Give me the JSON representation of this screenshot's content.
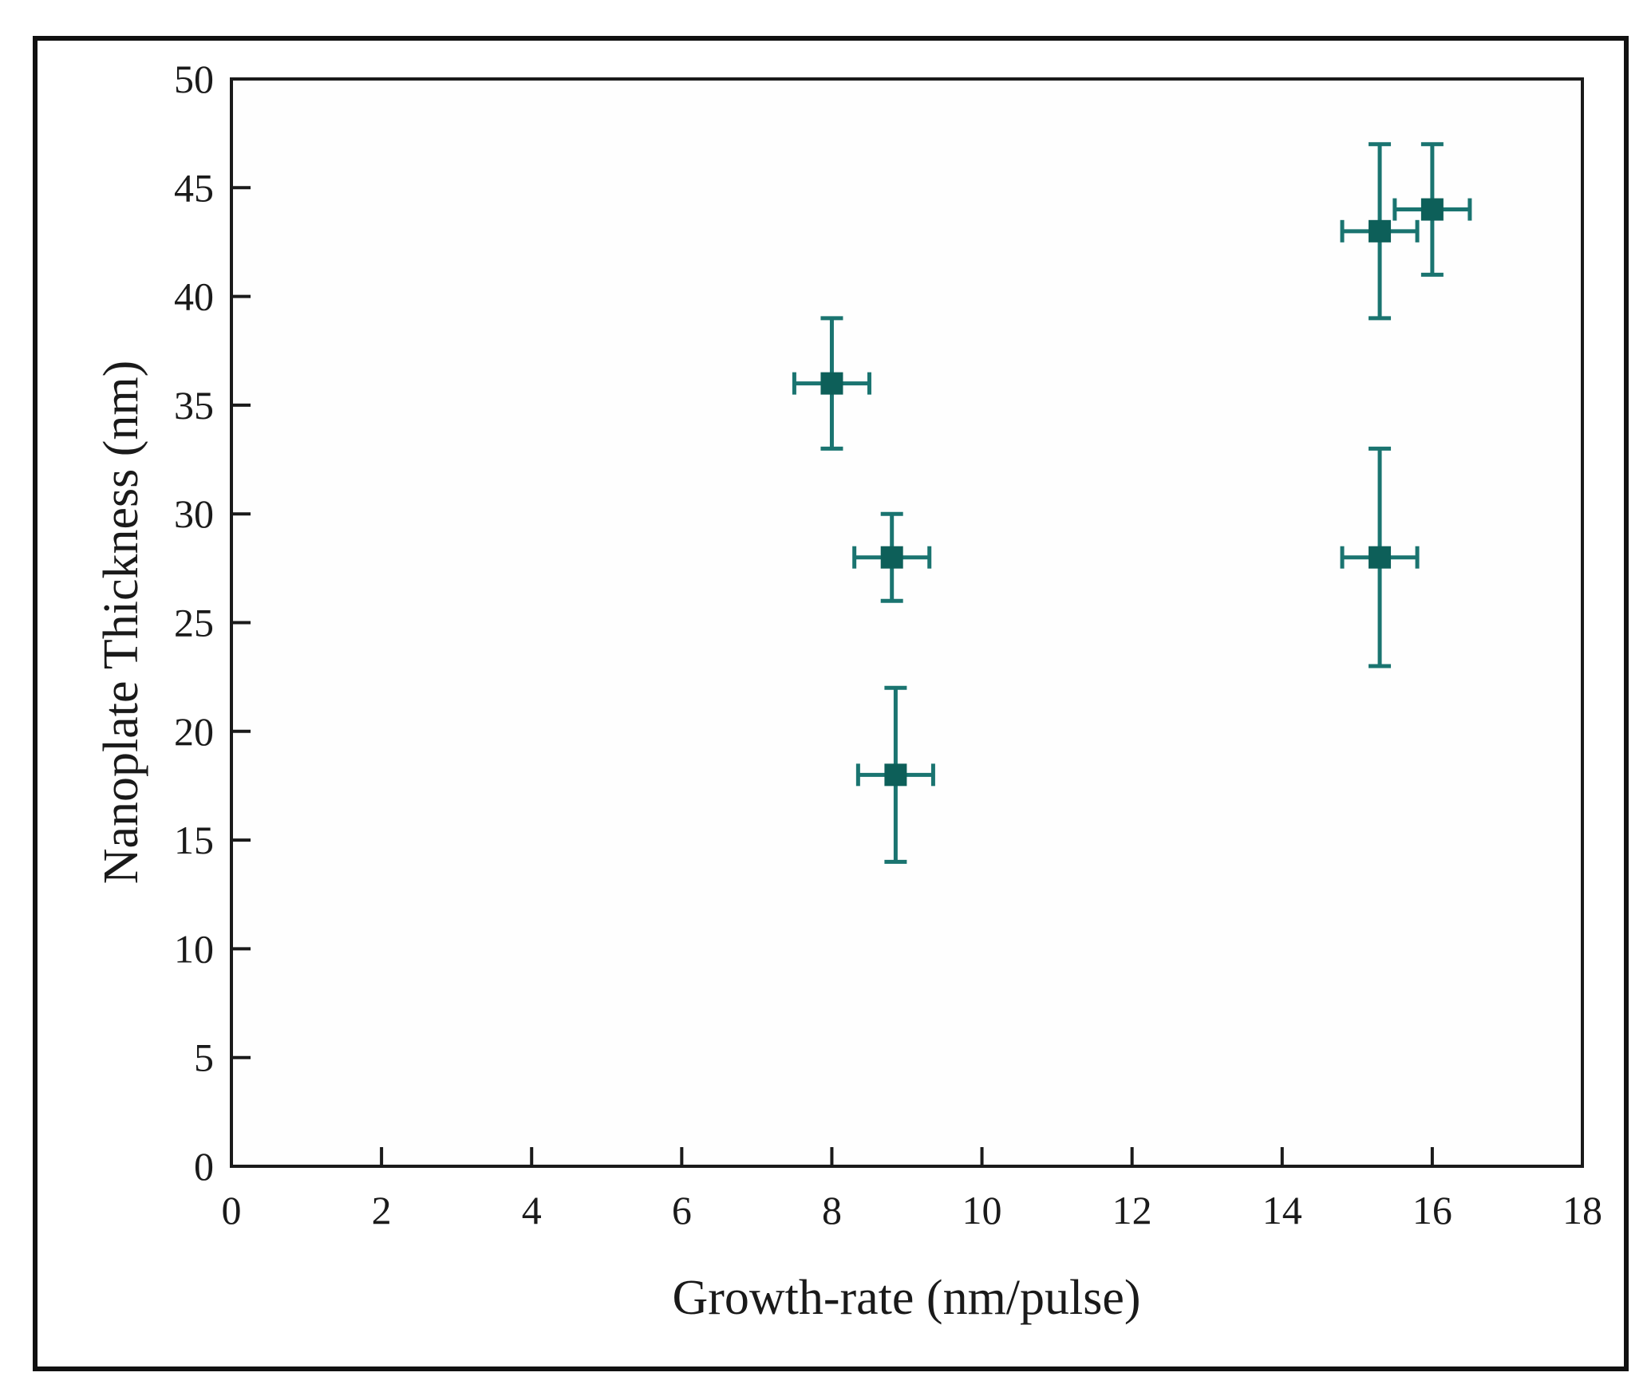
{
  "chart_data": {
    "type": "scatter",
    "title": "",
    "xlabel": "Growth-rate (nm/pulse)",
    "ylabel": "Nanoplate Thickness (nm)",
    "xlim": [
      0,
      18
    ],
    "ylim": [
      0,
      50
    ],
    "xticks": [
      0,
      2,
      4,
      6,
      8,
      10,
      12,
      14,
      16,
      18
    ],
    "yticks": [
      0,
      5,
      10,
      15,
      20,
      25,
      30,
      35,
      40,
      45,
      50
    ],
    "grid": false,
    "legend": "none",
    "series": [
      {
        "name": "",
        "color": "#1a7470",
        "marker_color": "#0d5f59",
        "marker": "square",
        "points": [
          {
            "x": 8.0,
            "y": 36,
            "xerr": 0.5,
            "yerr": 3
          },
          {
            "x": 8.8,
            "y": 28,
            "xerr": 0.5,
            "yerr": 2
          },
          {
            "x": 8.85,
            "y": 18,
            "xerr": 0.5,
            "yerr": 4
          },
          {
            "x": 15.3,
            "y": 43,
            "xerr": 0.5,
            "yerr": 4
          },
          {
            "x": 16.0,
            "y": 44,
            "xerr": 0.5,
            "yerr": 3
          },
          {
            "x": 15.3,
            "y": 28,
            "xerr": 0.5,
            "yerr": 5
          }
        ]
      }
    ]
  }
}
